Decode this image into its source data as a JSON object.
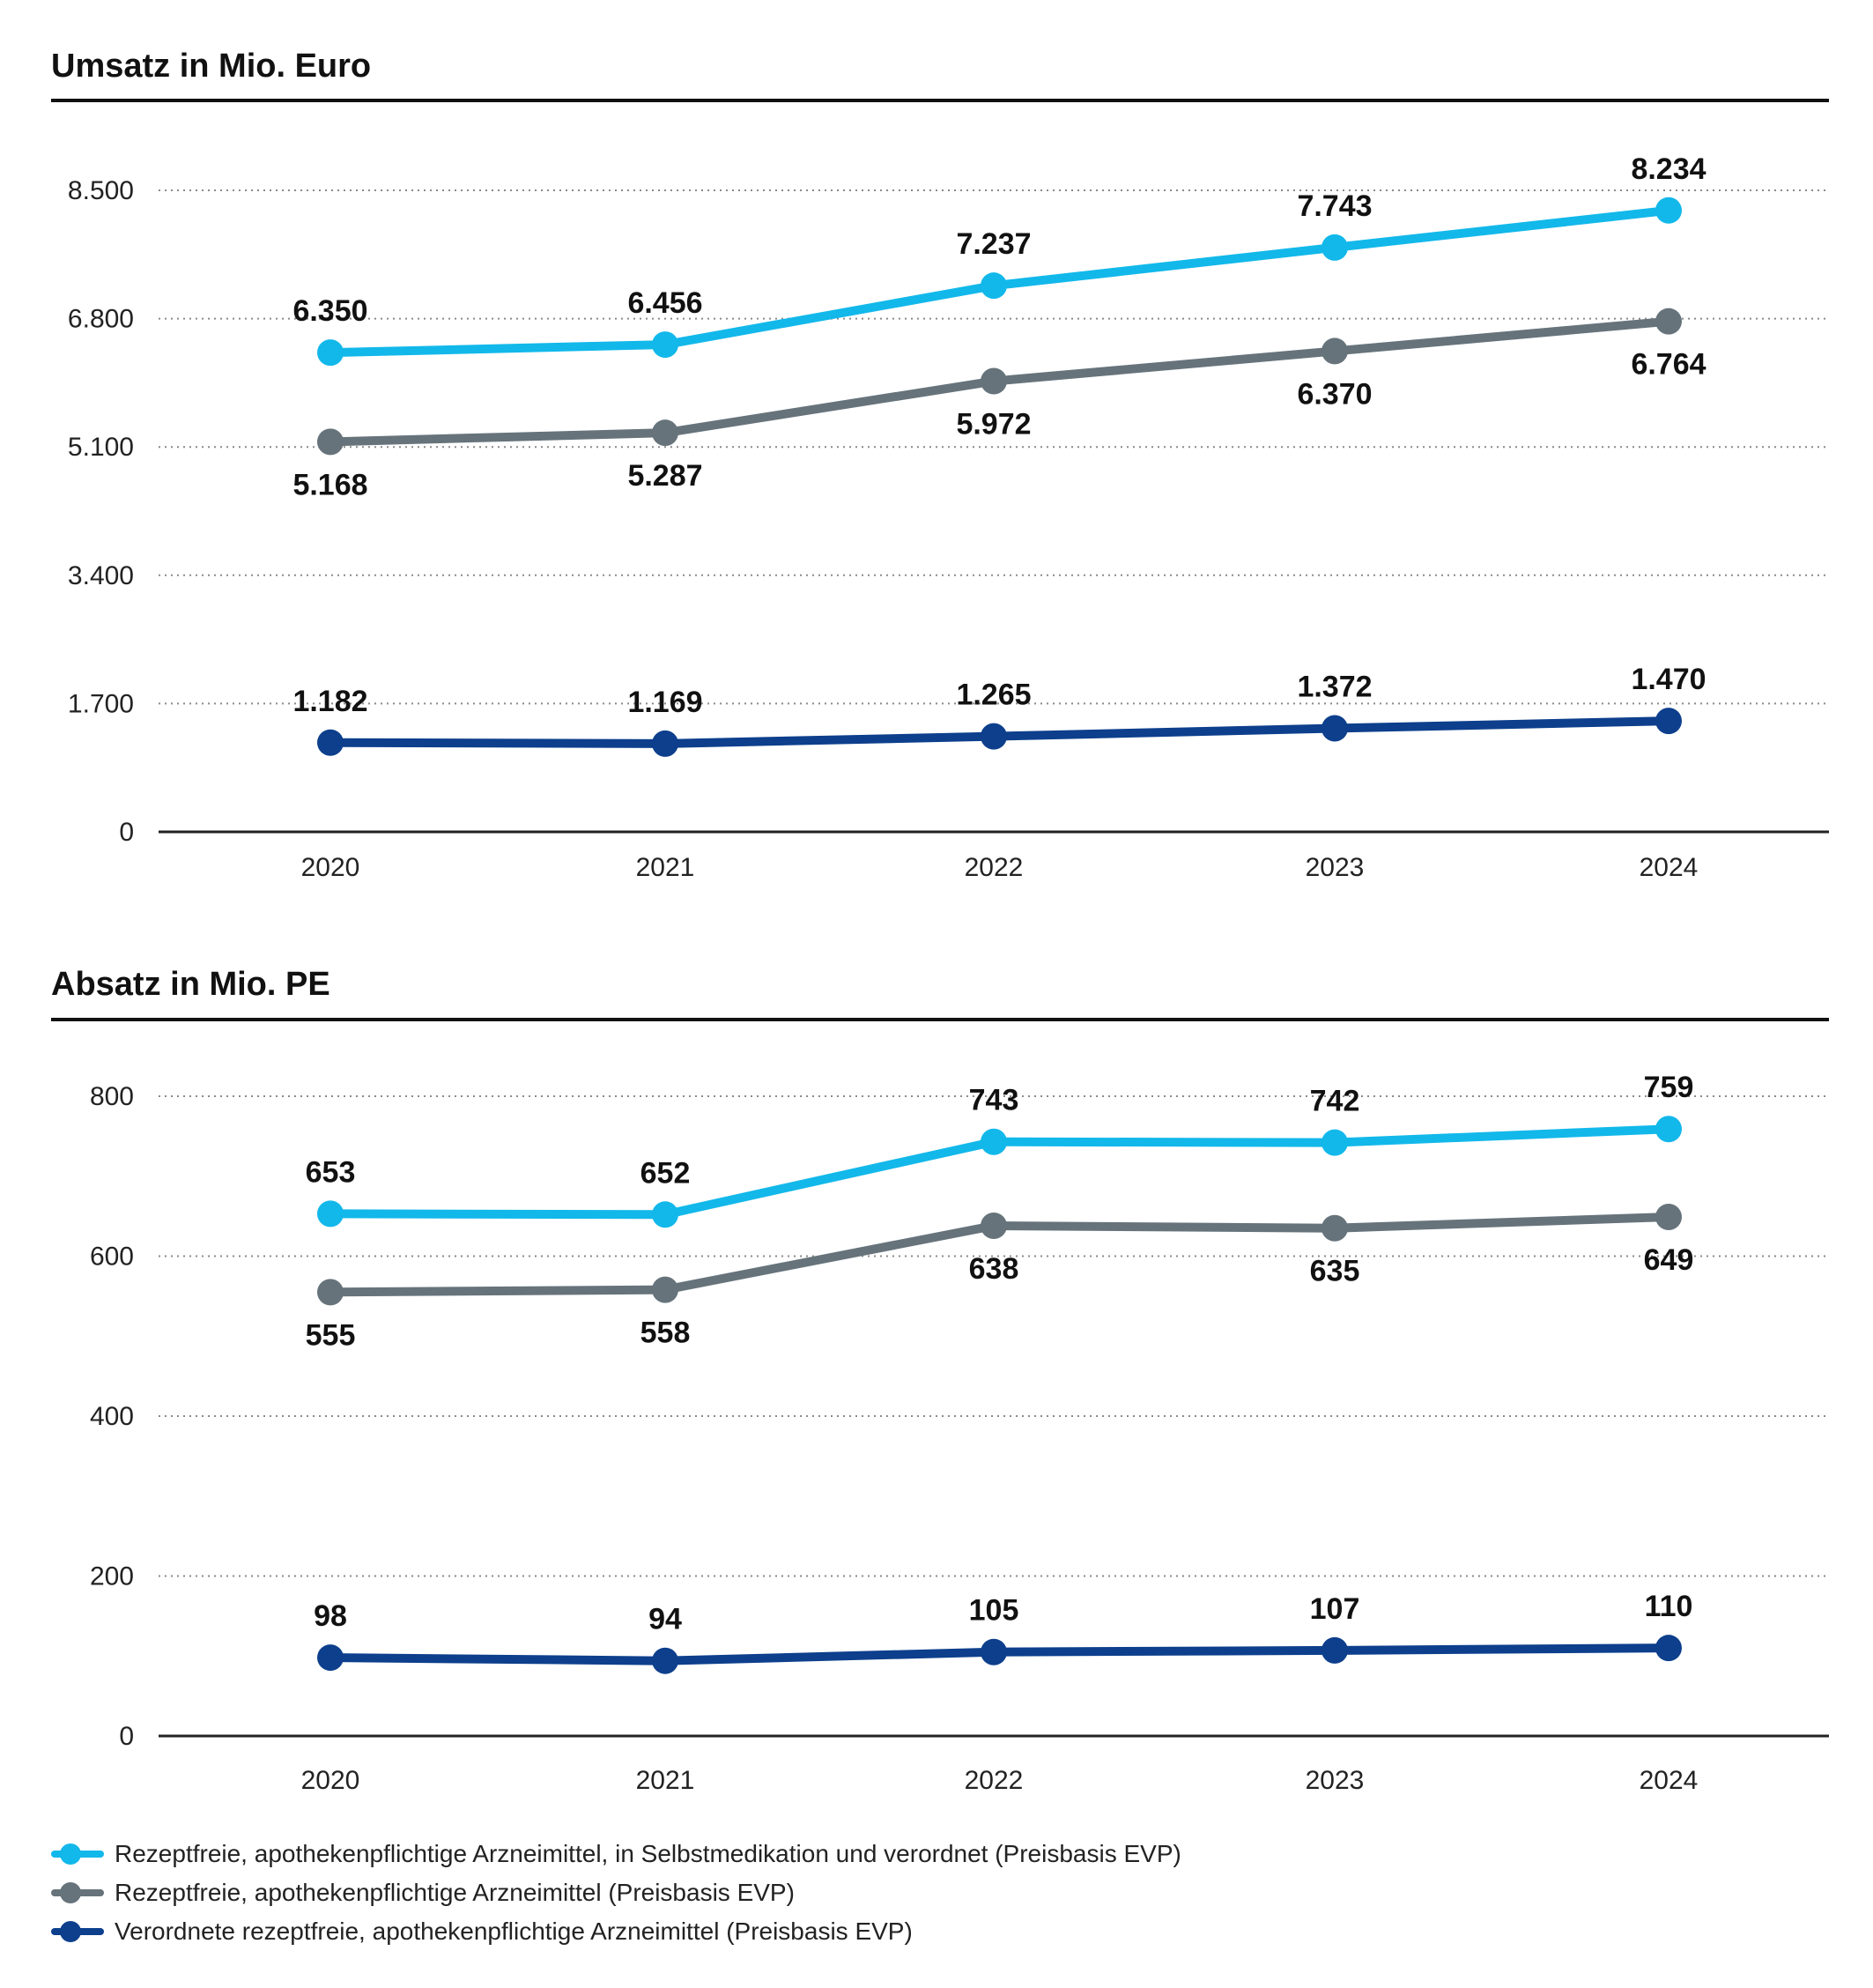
{
  "colors": {
    "light_blue": "#12b8ea",
    "gray": "#66737b",
    "dark_blue": "#0d3f8c"
  },
  "chart_data": [
    {
      "type": "line",
      "title": "Umsatz in Mio. Euro",
      "categories": [
        "2020",
        "2021",
        "2022",
        "2023",
        "2024"
      ],
      "y_ticks": [
        "0",
        "1.700",
        "3.400",
        "5.100",
        "6.800",
        "8.500"
      ],
      "ylim": [
        0,
        8500
      ],
      "series": [
        {
          "color_key": "light_blue",
          "values": [
            6350,
            6456,
            7237,
            7743,
            8234
          ],
          "labels": [
            "6.350",
            "6.456",
            "7.237",
            "7.743",
            "8.234"
          ],
          "label_position": "above"
        },
        {
          "color_key": "gray",
          "values": [
            5168,
            5287,
            5972,
            6370,
            6764
          ],
          "labels": [
            "5.168",
            "5.287",
            "5.972",
            "6.370",
            "6.764"
          ],
          "label_position": "below"
        },
        {
          "color_key": "dark_blue",
          "values": [
            1182,
            1169,
            1265,
            1372,
            1470
          ],
          "labels": [
            "1.182",
            "1.169",
            "1.265",
            "1.372",
            "1.470"
          ],
          "label_position": "above"
        }
      ],
      "grid": "horizontal dotted"
    },
    {
      "type": "line",
      "title": "Absatz in Mio. PE",
      "categories": [
        "2020",
        "2021",
        "2022",
        "2023",
        "2024"
      ],
      "y_ticks": [
        "0",
        "200",
        "400",
        "600",
        "800"
      ],
      "ylim": [
        0,
        800
      ],
      "series": [
        {
          "color_key": "light_blue",
          "values": [
            653,
            652,
            743,
            742,
            759
          ],
          "labels": [
            "653",
            "652",
            "743",
            "742",
            "759"
          ],
          "label_position": "above"
        },
        {
          "color_key": "gray",
          "values": [
            555,
            558,
            638,
            635,
            649
          ],
          "labels": [
            "555",
            "558",
            "638",
            "635",
            "649"
          ],
          "label_position": "below"
        },
        {
          "color_key": "dark_blue",
          "values": [
            98,
            94,
            105,
            107,
            110
          ],
          "labels": [
            "98",
            "94",
            "105",
            "107",
            "110"
          ],
          "label_position": "above"
        }
      ],
      "grid": "horizontal dotted"
    }
  ],
  "legend": [
    {
      "color_key": "light_blue",
      "label": "Rezeptfreie, apothekenpflichtige Arzneimittel, in Selbstmedikation und verordnet (Preisbasis EVP)"
    },
    {
      "color_key": "gray",
      "label": "Rezeptfreie, apothekenpflichtige Arzneimittel (Preisbasis EVP)"
    },
    {
      "color_key": "dark_blue",
      "label": "Verordnete rezeptfreie, apothekenpflichtige Arzneimittel (Preisbasis EVP)"
    }
  ]
}
